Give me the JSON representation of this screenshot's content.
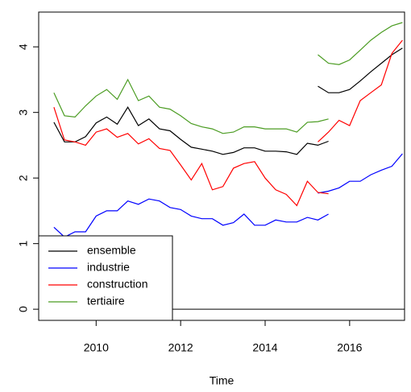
{
  "chart_data": {
    "type": "line",
    "xlabel": "Time",
    "x": [
      2009,
      2009.25,
      2009.5,
      2009.75,
      2010,
      2010.25,
      2010.5,
      2010.75,
      2011,
      2011.25,
      2011.5,
      2011.75,
      2012,
      2012.25,
      2012.5,
      2012.75,
      2013,
      2013.25,
      2013.5,
      2013.75,
      2014,
      2014.25,
      2014.5,
      2014.75,
      2015,
      2015.25,
      2015.5,
      null,
      2015.25,
      2015.5,
      2015.75,
      2016,
      2016.25,
      2016.5,
      2016.75,
      2017,
      2017.25
    ],
    "series": [
      {
        "name": "ensemble",
        "color": "#000000",
        "values": [
          2.85,
          2.55,
          2.55,
          2.63,
          2.84,
          2.93,
          2.82,
          3.08,
          2.8,
          2.9,
          2.75,
          2.72,
          2.59,
          2.47,
          2.44,
          2.41,
          2.36,
          2.39,
          2.46,
          2.46,
          2.41,
          2.41,
          2.4,
          2.36,
          2.53,
          2.5,
          2.56,
          null,
          3.4,
          3.3,
          3.3,
          3.35,
          3.48,
          3.62,
          3.75,
          3.88,
          3.98
        ]
      },
      {
        "name": "industrie",
        "color": "#0000ff",
        "values": [
          1.25,
          1.1,
          1.18,
          1.18,
          1.42,
          1.5,
          1.5,
          1.65,
          1.6,
          1.68,
          1.65,
          1.55,
          1.52,
          1.42,
          1.38,
          1.38,
          1.28,
          1.32,
          1.45,
          1.28,
          1.28,
          1.36,
          1.33,
          1.33,
          1.4,
          1.36,
          1.45,
          null,
          1.77,
          1.8,
          1.85,
          1.95,
          1.95,
          2.05,
          2.12,
          2.18,
          2.37
        ]
      },
      {
        "name": "construction",
        "color": "#ff0000",
        "values": [
          3.08,
          2.58,
          2.55,
          2.5,
          2.7,
          2.75,
          2.62,
          2.68,
          2.52,
          2.6,
          2.45,
          2.42,
          2.2,
          1.97,
          2.22,
          1.82,
          1.87,
          2.15,
          2.22,
          2.25,
          2.0,
          1.82,
          1.75,
          1.58,
          1.95,
          1.78,
          1.76,
          null,
          2.55,
          2.7,
          2.88,
          2.8,
          3.18,
          3.3,
          3.42,
          3.9,
          4.1
        ]
      },
      {
        "name": "tertiaire",
        "color": "#4b9c22",
        "values": [
          3.3,
          2.95,
          2.93,
          3.1,
          3.25,
          3.35,
          3.2,
          3.5,
          3.18,
          3.25,
          3.08,
          3.05,
          2.95,
          2.83,
          2.78,
          2.75,
          2.68,
          2.7,
          2.78,
          2.78,
          2.75,
          2.75,
          2.75,
          2.7,
          2.85,
          2.86,
          2.9,
          null,
          3.88,
          3.75,
          3.73,
          3.8,
          3.95,
          4.1,
          4.22,
          4.32,
          4.37
        ]
      }
    ],
    "hline": 0,
    "xlim": [
      2008.64,
      2017.3
    ],
    "xticks": [
      2010,
      2012,
      2014,
      2016
    ],
    "ylim": [
      -0.17,
      4.53
    ],
    "yticks": [
      0,
      1,
      2,
      3,
      4
    ],
    "legend": "bottom-left"
  }
}
